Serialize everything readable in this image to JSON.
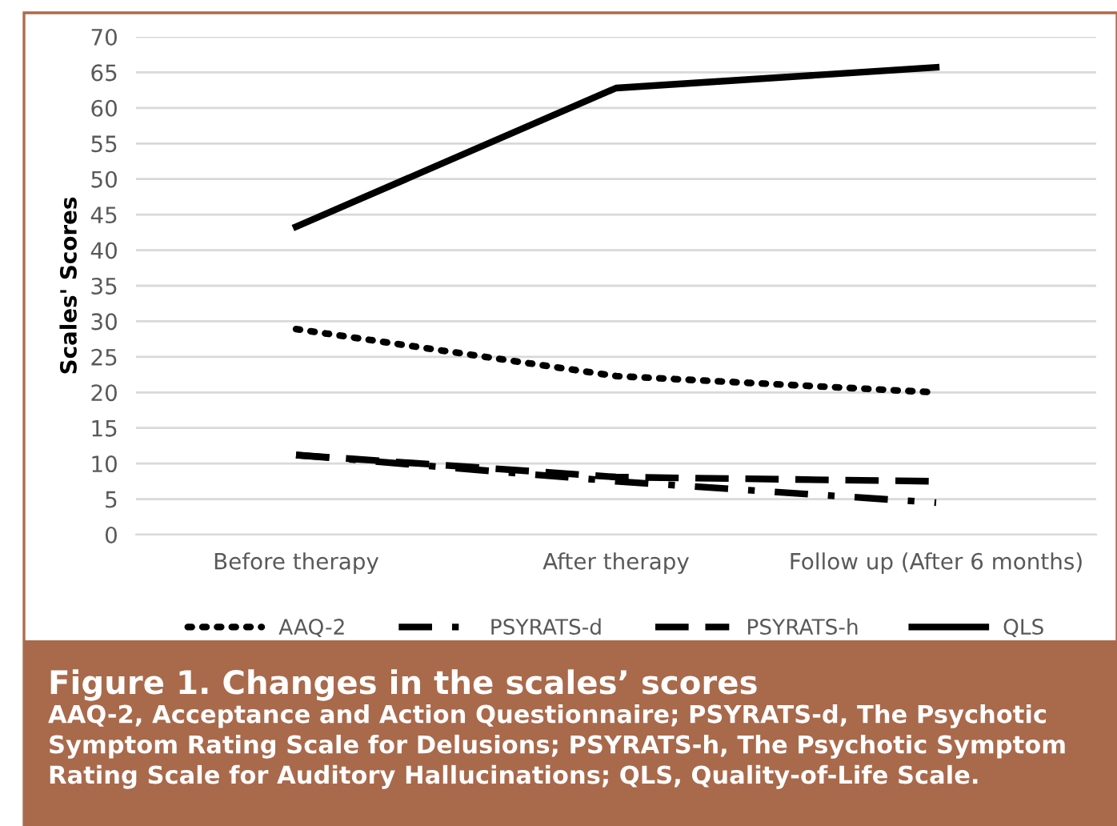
{
  "chart_data": {
    "type": "line",
    "title": "Figure 1. Changes in the scales’ scores",
    "subtitle": "AAQ-2, Acceptance and Action Questionnaire; PSYRATS-d, The Psychotic Symptom Rating Scale for Delusions; PSYRATS-h, The Psychotic Symptom Rating Scale for Auditory Hallucinations; QLS, Quality-of-Life Scale.",
    "ylabel": "Scales' Scores",
    "categories": [
      "Before therapy",
      "After therapy",
      "Follow up (After 6 months)"
    ],
    "series": [
      {
        "name": "AAQ-2",
        "color": "#000000",
        "line_style": "dotted",
        "values": [
          28.9,
          22.3,
          20.0
        ]
      },
      {
        "name": "PSYRATS-d",
        "color": "#000000",
        "line_style": "dashdot",
        "values": [
          11.2,
          7.5,
          4.5
        ]
      },
      {
        "name": "PSYRATS-h",
        "color": "#000000",
        "line_style": "dashed",
        "values": [
          11.2,
          8.1,
          7.5
        ]
      },
      {
        "name": "QLS",
        "color": "#000000",
        "line_style": "solid",
        "values": [
          43.3,
          62.8,
          65.7
        ]
      }
    ],
    "ylim": [
      0,
      70
    ],
    "yticks": [
      0,
      5,
      10,
      15,
      20,
      25,
      30,
      35,
      40,
      45,
      50,
      55,
      60,
      65,
      70
    ],
    "grid": "y",
    "legend": "bottom",
    "marker": "none"
  }
}
